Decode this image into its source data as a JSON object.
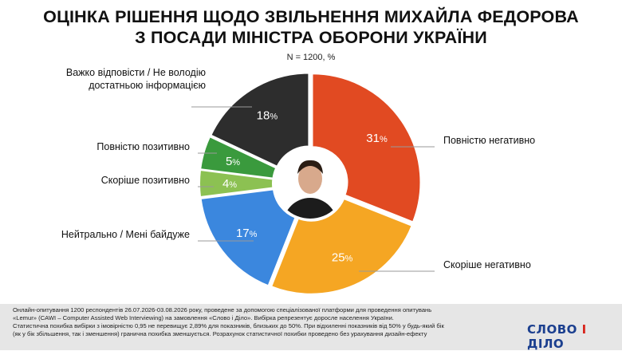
{
  "title_line1": "ОЦІНКА РІШЕННЯ ЩОДО ЗВІЛЬНЕННЯ МИХАЙЛА ФЕДОРОВА",
  "title_line2": "З ПОСАДИ МІНІСТРА ОБОРОНИ УКРАЇНИ",
  "subtitle": "N = 1200, %",
  "chart_data": {
    "type": "pie",
    "variant": "donut",
    "title": "ОЦІНКА РІШЕННЯ ЩОДО ЗВІЛЬНЕННЯ МИХАЙЛА ФЕДОРОВА З ПОСАДИ МІНІСТРА ОБОРОНИ УКРАЇНИ",
    "unit": "%",
    "slices": [
      {
        "label": "Повністю негативно",
        "value": 31,
        "color": "#e14a22"
      },
      {
        "label": "Скоріше негативно",
        "value": 25,
        "color": "#f5a623"
      },
      {
        "label": "Нейтрально / Мені байдуже",
        "value": 17,
        "color": "#3b87de"
      },
      {
        "label": "Скоріше позитивно",
        "value": 4,
        "color": "#8cc152"
      },
      {
        "label": "Повністю позитивно",
        "value": 5,
        "color": "#3a9a3d"
      },
      {
        "label": "Важко відповісти / Не володію достатньою інформацією",
        "value": 18,
        "color": "#2d2d2d"
      }
    ],
    "label_lines": [
      [
        "Повністю негативно"
      ],
      [
        "Скоріше негативно"
      ],
      [
        "Нейтрально / Мені байдуже"
      ],
      [
        "Скоріше позитивно"
      ],
      [
        "Повністю позитивно"
      ],
      [
        "Важко відповісти / Не володію",
        "достатньою інформацією"
      ]
    ]
  },
  "footer": {
    "lines": [
      "Онлайн-опитування 1200 респондентів 26.07.2026-03.08.2026 року, проведене за допомогою спеціалізованої платформи для проведення опитувань",
      "«Lemur» (CAWI – Computer Assisted Web Interviewing) на замовлення «Слово і Діло». Вибірка репрезентує доросле населення України.",
      "Статистична похибка вибірки з імовірністю 0,95 не перевищує 2,89% для показників, близьких до 50%. При відхиленні показників від 50% у будь-який бік",
      "(як у бік збільшення, так і зменшення) гранична похибка зменшується. Розрахунок статистичної похибки проведено без урахування дизайн-ефекту"
    ]
  },
  "logo": {
    "part1": "СЛОВО",
    "part2": "І",
    "part3": "ДІЛО"
  }
}
